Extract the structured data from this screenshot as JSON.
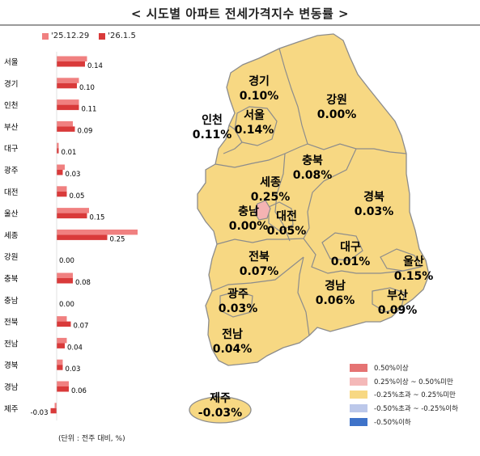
{
  "title": "< 시도별 아파트 전세가격지수 변동률 >",
  "unit_note": "(단위 : 전주 대비, %)",
  "colors": {
    "prev_week": "#f08080",
    "this_week": "#d93a3a",
    "map_fill": "#f7d883",
    "map_stroke": "#8c8c8c",
    "sejong_fill": "#f4b3b3"
  },
  "chart_data": {
    "type": "bar",
    "orientation": "horizontal",
    "title": "< 시도별 아파트 전세가격지수 변동률 >",
    "categories": [
      "서울",
      "경기",
      "인천",
      "부산",
      "대구",
      "광주",
      "대전",
      "울산",
      "세종",
      "강원",
      "충북",
      "충남",
      "전북",
      "전남",
      "경북",
      "경남",
      "제주"
    ],
    "series": [
      {
        "name": "'25.12.29",
        "values": [
          0.15,
          0.11,
          0.11,
          0.08,
          0.01,
          0.04,
          0.05,
          0.16,
          0.4,
          0.0,
          0.08,
          0.0,
          0.05,
          0.05,
          0.03,
          0.06,
          -0.01
        ]
      },
      {
        "name": "'26.1.5",
        "values": [
          0.14,
          0.1,
          0.11,
          0.09,
          0.01,
          0.03,
          0.05,
          0.15,
          0.25,
          0.0,
          0.08,
          0.0,
          0.07,
          0.04,
          0.03,
          0.06,
          -0.03
        ]
      }
    ],
    "value_labels": [
      "0.14",
      "0.10",
      "0.11",
      "0.09",
      "0.01",
      "0.03",
      "0.05",
      "0.15",
      "0.25",
      "0.00",
      "0.08",
      "0.00",
      "0.07",
      "0.04",
      "0.03",
      "0.06",
      "-0.03"
    ],
    "legend": "top-left",
    "grid": false
  },
  "map": {
    "regions": [
      {
        "name": "경기",
        "value": "0.10%"
      },
      {
        "name": "강원",
        "value": "0.00%"
      },
      {
        "name": "인천",
        "value": "0.11%"
      },
      {
        "name": "서울",
        "value": "0.14%"
      },
      {
        "name": "충북",
        "value": "0.08%"
      },
      {
        "name": "세종",
        "value": "0.25%"
      },
      {
        "name": "충남",
        "value": "0.00%"
      },
      {
        "name": "대전",
        "value": "0.05%"
      },
      {
        "name": "경북",
        "value": "0.03%"
      },
      {
        "name": "전북",
        "value": "0.07%"
      },
      {
        "name": "대구",
        "value": "0.01%"
      },
      {
        "name": "울산",
        "value": "0.15%"
      },
      {
        "name": "광주",
        "value": "0.03%"
      },
      {
        "name": "경남",
        "value": "0.06%"
      },
      {
        "name": "부산",
        "value": "0.09%"
      },
      {
        "name": "전남",
        "value": "0.04%"
      },
      {
        "name": "제주",
        "value": "-0.03%"
      }
    ],
    "legend": [
      {
        "label": "0.50%이상",
        "color": "#e57373"
      },
      {
        "label": "0.25%이상 ~ 0.50%미만",
        "color": "#f4b8b8"
      },
      {
        "label": "-0.25%초과 ~ 0.25%미만",
        "color": "#f7d883"
      },
      {
        "label": "-0.50%초과 ~ -0.25%이하",
        "color": "#bcc8ea"
      },
      {
        "label": "-0.50%이하",
        "color": "#3f73c9"
      }
    ]
  }
}
